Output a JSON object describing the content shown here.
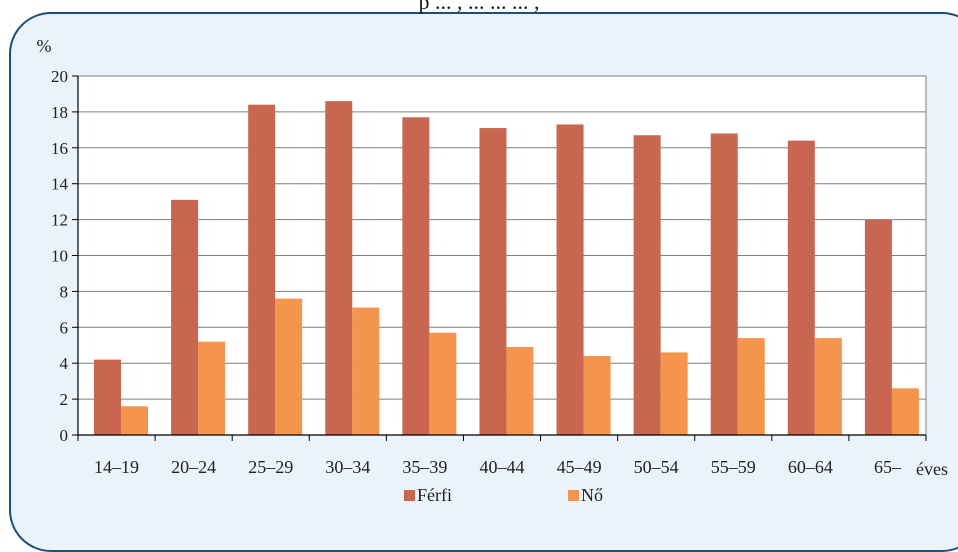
{
  "cutoff_title": "p ... , ... ... ... ,",
  "chart_data": {
    "type": "bar",
    "ylabel": "%",
    "xunit": "éves",
    "ylim": [
      0,
      20
    ],
    "yticks": [
      0,
      2,
      4,
      6,
      8,
      10,
      12,
      14,
      16,
      18,
      20
    ],
    "categories": [
      "14–19",
      "20–24",
      "25–29",
      "30–34",
      "35–39",
      "40–44",
      "45–49",
      "50–54",
      "55–59",
      "60–64",
      "65–"
    ],
    "series": [
      {
        "name": "Férfi",
        "color": "#c8664f",
        "values": [
          4.2,
          13.1,
          18.4,
          18.6,
          17.7,
          17.1,
          17.3,
          16.7,
          16.8,
          16.4,
          12.0
        ]
      },
      {
        "name": "Nő",
        "color": "#f5944d",
        "values": [
          1.6,
          5.2,
          7.6,
          7.1,
          5.7,
          4.9,
          4.4,
          4.6,
          5.4,
          5.4,
          2.6
        ]
      }
    ],
    "grid": true,
    "legend": "bottom"
  }
}
